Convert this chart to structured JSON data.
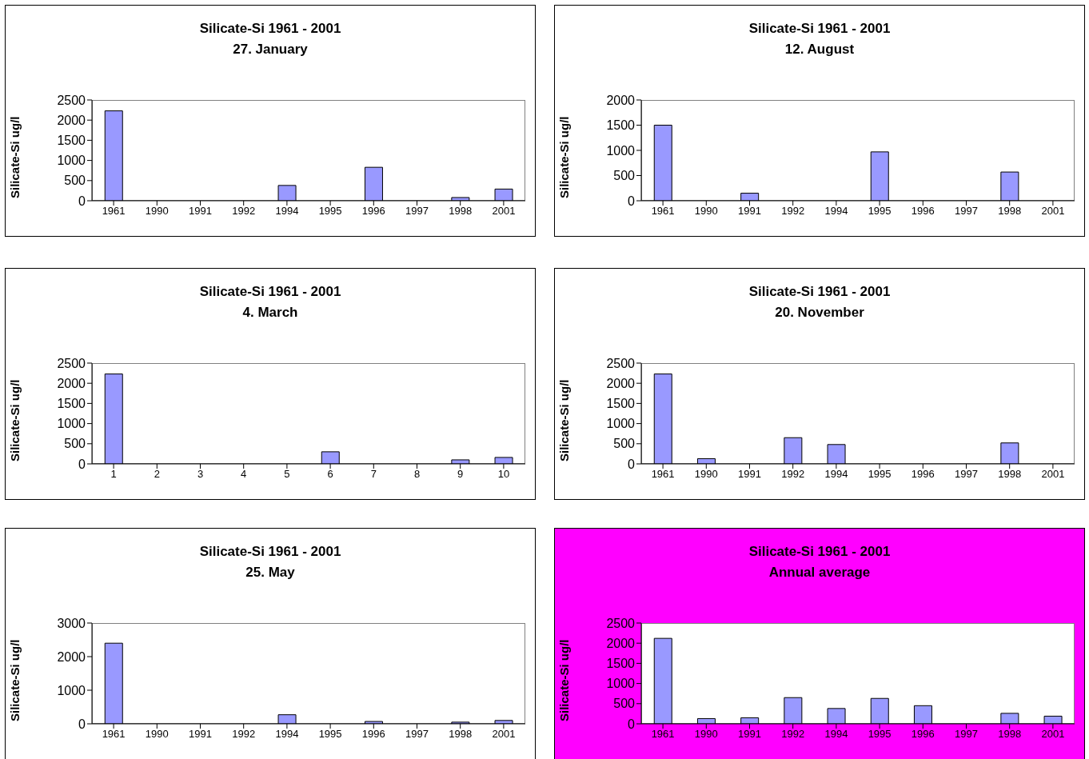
{
  "chart_data": [
    {
      "type": "bar",
      "title": "Silicate-Si 1961 - 2001",
      "subtitle": "27. January",
      "ylabel": "Silicate-Si ug/l",
      "categories": [
        "1961",
        "1990",
        "1991",
        "1992",
        "1994",
        "1995",
        "1996",
        "1997",
        "1998",
        "2001"
      ],
      "values": [
        2230,
        null,
        null,
        null,
        380,
        null,
        830,
        null,
        80,
        290
      ],
      "color": "#9999ff",
      "ylim": [
        0,
        2500
      ],
      "yticks": [
        0,
        500,
        1000,
        1500,
        2000,
        2500
      ]
    },
    {
      "type": "bar",
      "title": "Silicate-Si 1961 - 2001",
      "subtitle": "12. August",
      "ylabel": "Silicate-Si ug/l",
      "categories": [
        "1961",
        "1990",
        "1991",
        "1992",
        "1994",
        "1995",
        "1996",
        "1997",
        "1998",
        "2001"
      ],
      "values": [
        1500,
        null,
        150,
        null,
        null,
        970,
        null,
        null,
        570,
        null
      ],
      "color": "#9999ff",
      "ylim": [
        0,
        2000
      ],
      "yticks": [
        0,
        500,
        1000,
        1500,
        2000
      ]
    },
    {
      "type": "bar",
      "title": "Silicate-Si 1961 - 2001",
      "subtitle": "4. March",
      "ylabel": "Silicate-Si ug/l",
      "categories": [
        "1",
        "2",
        "3",
        "4",
        "5",
        "6",
        "7",
        "8",
        "9",
        "10"
      ],
      "values": [
        2230,
        null,
        null,
        null,
        null,
        300,
        null,
        null,
        100,
        160
      ],
      "color": "#9999ff",
      "ylim": [
        0,
        2500
      ],
      "yticks": [
        0,
        500,
        1000,
        1500,
        2000,
        2500
      ]
    },
    {
      "type": "bar",
      "title": "Silicate-Si 1961 - 2001",
      "subtitle": "20. November",
      "ylabel": "Silicate-Si ug/l",
      "categories": [
        "1961",
        "1990",
        "1991",
        "1992",
        "1994",
        "1995",
        "1996",
        "1997",
        "1998",
        "2001"
      ],
      "values": [
        2230,
        130,
        null,
        650,
        480,
        null,
        null,
        null,
        520,
        null
      ],
      "color": "#9999ff",
      "ylim": [
        0,
        2500
      ],
      "yticks": [
        0,
        500,
        1000,
        1500,
        2000,
        2500
      ]
    },
    {
      "type": "bar",
      "title": "Silicate-Si 1961 - 2001",
      "subtitle": "25. May",
      "ylabel": "Silicate-Si ug/l",
      "categories": [
        "1961",
        "1990",
        "1991",
        "1992",
        "1994",
        "1995",
        "1996",
        "1997",
        "1998",
        "2001"
      ],
      "values": [
        2400,
        null,
        null,
        null,
        270,
        null,
        70,
        null,
        50,
        100
      ],
      "color": "#9999ff",
      "ylim": [
        0,
        3000
      ],
      "yticks": [
        0,
        1000,
        2000,
        3000
      ]
    },
    {
      "type": "bar",
      "title": "Silicate-Si 1961 - 2001",
      "subtitle": "Annual average",
      "ylabel": "Silicate-Si ug/l",
      "categories": [
        "1961",
        "1990",
        "1991",
        "1992",
        "1994",
        "1995",
        "1996",
        "1997",
        "1998",
        "2001"
      ],
      "values": [
        2120,
        130,
        150,
        650,
        380,
        630,
        450,
        null,
        260,
        190
      ],
      "color": "#9999ff",
      "ylim": [
        0,
        2500
      ],
      "yticks": [
        0,
        500,
        1000,
        1500,
        2000,
        2500
      ]
    }
  ]
}
